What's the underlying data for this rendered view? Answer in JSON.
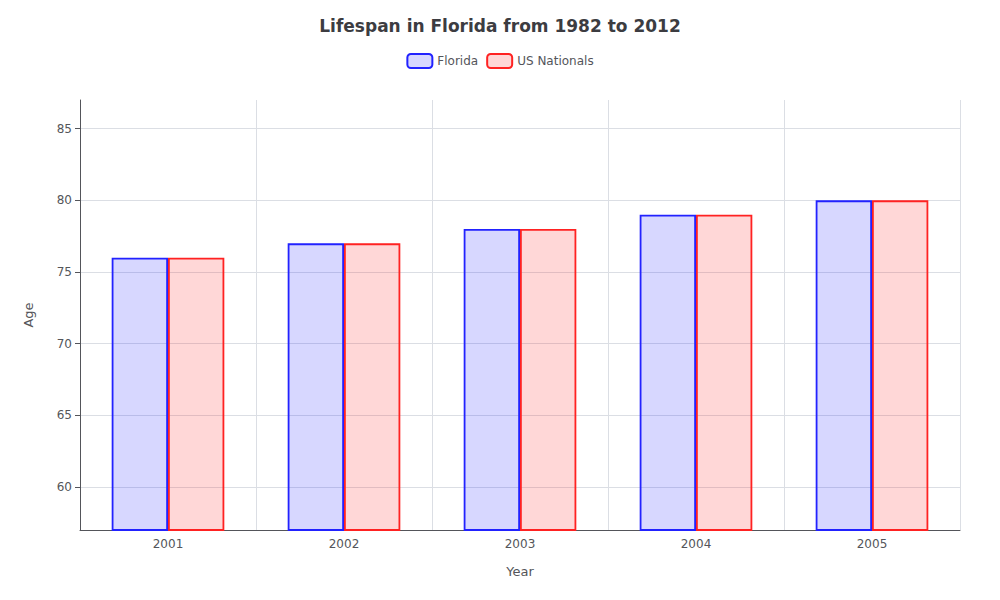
{
  "chart_data": {
    "type": "bar",
    "title": "Lifespan in Florida from 1982 to 2012",
    "xlabel": "Year",
    "ylabel": "Age",
    "categories": [
      "2001",
      "2002",
      "2003",
      "2004",
      "2005"
    ],
    "series": [
      {
        "name": "Florida",
        "color": "#2222ff",
        "values": [
          76,
          77,
          78,
          79,
          80
        ]
      },
      {
        "name": "US Nationals",
        "color": "#ff2222",
        "values": [
          76,
          77,
          78,
          79,
          80
        ]
      }
    ],
    "ylim": [
      57,
      87
    ],
    "yticks": [
      60,
      65,
      70,
      75,
      80,
      85
    ],
    "grid": true,
    "legend": "top"
  }
}
